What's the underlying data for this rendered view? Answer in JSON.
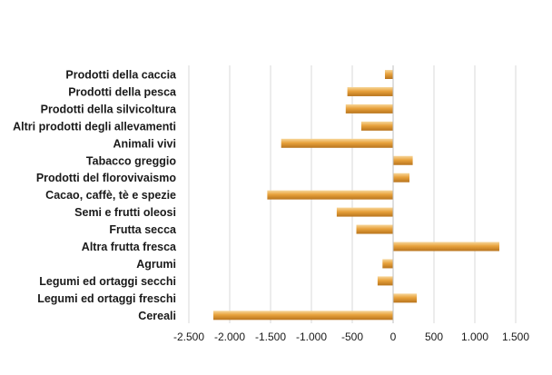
{
  "chart_data": {
    "type": "bar",
    "orientation": "horizontal",
    "categories": [
      "Prodotti della caccia",
      "Prodotti della pesca",
      "Prodotti della silvicoltura",
      "Altri prodotti degli allevamenti",
      "Animali vivi",
      "Tabacco greggio",
      "Prodotti del florovivaismo",
      "Cacao, caffè, tè e spezie",
      "Semi e frutti oleosi",
      "Frutta secca",
      "Altra frutta fresca",
      "Agrumi",
      "Legumi ed ortaggi secchi",
      "Legumi ed ortaggi freschi",
      "Cereali"
    ],
    "values": [
      -100,
      -560,
      -580,
      -390,
      -1370,
      240,
      200,
      -1540,
      -690,
      -450,
      1300,
      -130,
      -190,
      290,
      -2200
    ],
    "xlim": [
      -2500,
      1500
    ],
    "xticks": [
      -2500,
      -2000,
      -1500,
      -1000,
      -500,
      0,
      500,
      1000,
      1500
    ],
    "xtick_labels": [
      "-2.500",
      "-2.000",
      "-1.500",
      "-1.000",
      "-500",
      "0",
      "500",
      "1.000",
      "1.500"
    ],
    "grid": true,
    "legend": "none",
    "title": "",
    "xlabel": "",
    "ylabel": "",
    "colors": {
      "bar": "#e8a23c",
      "bar_light": "#f7d79b",
      "bar_dark": "#b8741d",
      "grid": "#d9d9d9",
      "text": "#1a1a1a"
    }
  }
}
